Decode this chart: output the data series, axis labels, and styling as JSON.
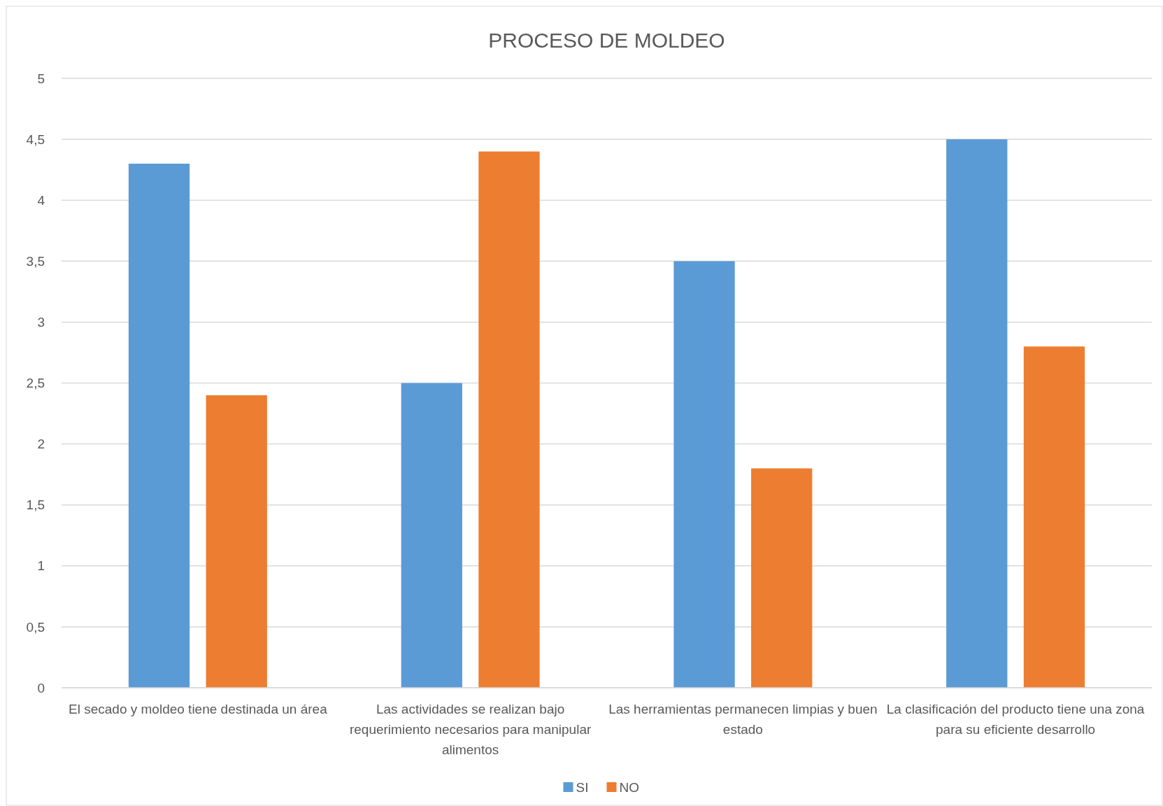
{
  "chart_data": {
    "type": "bar",
    "title": "PROCESO DE MOLDEO",
    "categories": [
      "El secado y moldeo tiene destinada un área",
      "Las actividades se realizan bajo requerimiento necesarios para manipular alimentos",
      "Las herramientas permanecen limpias y buen estado",
      "La clasificación del producto tiene una zona para su eficiente desarrollo"
    ],
    "series": [
      {
        "name": "SI",
        "color": "#5b9bd5",
        "values": [
          4.3,
          2.5,
          3.5,
          4.5
        ]
      },
      {
        "name": "NO",
        "color": "#ed7d31",
        "values": [
          2.4,
          4.4,
          1.8,
          2.8
        ]
      }
    ],
    "ylim": [
      0,
      5
    ],
    "yticks": [
      0,
      {
        "value": 0.5,
        "label": "0,5"
      },
      1,
      {
        "value": 1.5,
        "label": "1,5"
      },
      2,
      {
        "value": 2.5,
        "label": "2,5"
      },
      3,
      {
        "value": 3.5,
        "label": "3,5"
      },
      4,
      {
        "value": 4.5,
        "label": "4,5"
      },
      5
    ],
    "grid": "y",
    "legend": "bottom"
  }
}
